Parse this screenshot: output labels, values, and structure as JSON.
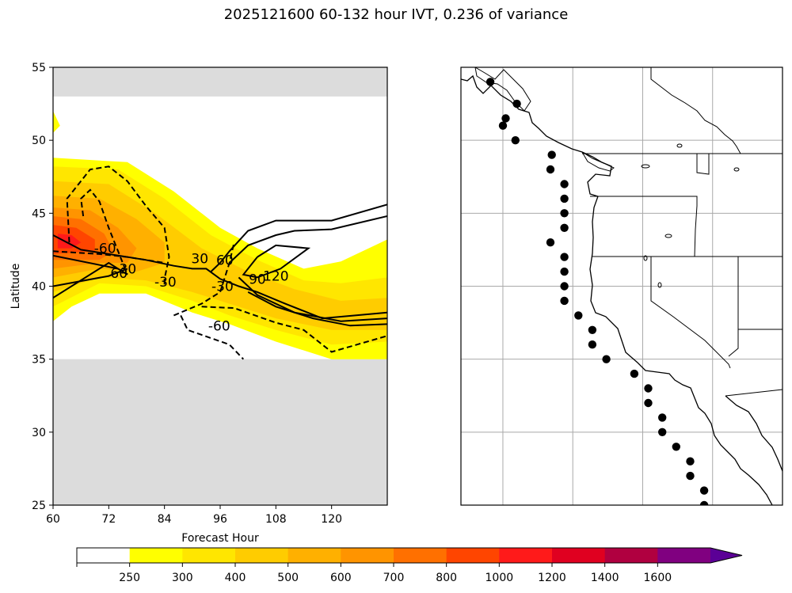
{
  "title": "2025121600 60-132 hour IVT, 0.236 of variance",
  "chart_data": [
    {
      "type": "heatmap",
      "panel": "left",
      "xlabel": "Forecast Hour",
      "ylabel": "Latitude",
      "xlim": [
        60,
        132
      ],
      "ylim": [
        25,
        55
      ],
      "xticks": [
        60,
        72,
        84,
        96,
        108,
        120
      ],
      "yticks": [
        25,
        30,
        35,
        40,
        45,
        50,
        55
      ],
      "data_lat_range": [
        35,
        53
      ],
      "masked_color": "#dcdcdc",
      "colorbar": {
        "levels": [
          "250",
          "300",
          "400",
          "500",
          "600",
          "700",
          "800",
          "1000",
          "1200",
          "1400",
          "1600"
        ],
        "colors": [
          "#ffffff",
          "#ffff00",
          "#ffe600",
          "#ffcc00",
          "#ffb000",
          "#ff9400",
          "#ff7000",
          "#ff4500",
          "#ff1a1a",
          "#e00020",
          "#b00040",
          "#800080",
          "#5b0096"
        ],
        "extend": "max"
      },
      "filled_regions": [
        {
          "level": 250,
          "color": "#ffff00",
          "points": [
            [
              60,
              52
            ],
            [
              61.5,
              51
            ],
            [
              60,
              50.5
            ]
          ]
        },
        {
          "level": 250,
          "color": "#ffff00",
          "points": [
            [
              60,
              48.8
            ],
            [
              76,
              48.5
            ],
            [
              86,
              46.5
            ],
            [
              96,
              44
            ],
            [
              104,
              42.6
            ],
            [
              114,
              41.2
            ],
            [
              122,
              41.7
            ],
            [
              132,
              43.2
            ],
            [
              132,
              35
            ],
            [
              120,
              35
            ],
            [
              108,
              36.2
            ],
            [
              98,
              37.4
            ],
            [
              90,
              38.2
            ],
            [
              80,
              39.5
            ],
            [
              70,
              39.5
            ],
            [
              64,
              38.6
            ],
            [
              60,
              37.6
            ]
          ]
        },
        {
          "level": 300,
          "color": "#ffe600",
          "points": [
            [
              60,
              48.2
            ],
            [
              74,
              48
            ],
            [
              84,
              46
            ],
            [
              94,
              43.5
            ],
            [
              104,
              41.8
            ],
            [
              114,
              40.4
            ],
            [
              122,
              40.2
            ],
            [
              132,
              40.6
            ],
            [
              132,
              36.2
            ],
            [
              120,
              36
            ],
            [
              108,
              37
            ],
            [
              98,
              38
            ],
            [
              90,
              39
            ],
            [
              80,
              40
            ],
            [
              70,
              40.2
            ],
            [
              60,
              38.6
            ]
          ]
        },
        {
          "level": 400,
          "color": "#ffcc00",
          "points": [
            [
              60,
              47.2
            ],
            [
              72,
              47
            ],
            [
              82,
              45
            ],
            [
              92,
              42.6
            ],
            [
              102,
              41
            ],
            [
              112,
              39.8
            ],
            [
              122,
              39
            ],
            [
              132,
              39.2
            ],
            [
              132,
              37
            ],
            [
              120,
              37
            ],
            [
              108,
              37.8
            ],
            [
              98,
              38.8
            ],
            [
              90,
              39.6
            ],
            [
              80,
              40.4
            ],
            [
              70,
              40.6
            ],
            [
              60,
              39.6
            ]
          ]
        },
        {
          "level": 500,
          "color": "#ffb000",
          "points": [
            [
              60,
              46.2
            ],
            [
              70,
              46
            ],
            [
              78,
              44.6
            ],
            [
              84,
              43
            ],
            [
              84,
              41.6
            ],
            [
              78,
              41
            ],
            [
              70,
              41.2
            ],
            [
              60,
              40.6
            ]
          ]
        },
        {
          "level": 600,
          "color": "#ff9400",
          "points": [
            [
              60,
              45.4
            ],
            [
              68,
              45.2
            ],
            [
              74,
              44
            ],
            [
              78,
              42.6
            ],
            [
              76,
              41.6
            ],
            [
              70,
              41.6
            ],
            [
              60,
              41.2
            ]
          ]
        },
        {
          "level": 700,
          "color": "#ff7000",
          "points": [
            [
              60,
              44.8
            ],
            [
              66,
              44.6
            ],
            [
              71,
              43.6
            ],
            [
              73,
              42.4
            ],
            [
              70,
              41.8
            ],
            [
              60,
              41.8
            ]
          ]
        },
        {
          "level": 800,
          "color": "#ff4500",
          "points": [
            [
              60,
              44.2
            ],
            [
              65,
              44
            ],
            [
              69,
              43.2
            ],
            [
              69,
              42.4
            ],
            [
              60,
              42.2
            ]
          ]
        },
        {
          "level": 1000,
          "color": "#ff1a1a",
          "points": [
            [
              61,
              43.6
            ],
            [
              64,
              43.5
            ],
            [
              66,
              43
            ],
            [
              64,
              42.6
            ],
            [
              61,
              42.6
            ]
          ]
        }
      ],
      "contours": [
        {
          "style": "dashed",
          "label": "-60",
          "label_at": [
            71.2,
            42.6
          ],
          "points": [
            [
              66.5,
              44.8
            ],
            [
              66,
              46
            ],
            [
              68,
              46.6
            ],
            [
              70,
              45.8
            ],
            [
              72,
              44
            ],
            [
              74.5,
              42
            ],
            [
              76,
              40.8
            ]
          ]
        },
        {
          "style": "dashed",
          "label": "-30",
          "label_at": [
            84.2,
            40.3
          ],
          "points": [
            [
              63.5,
              43
            ],
            [
              63,
              46
            ],
            [
              68,
              48
            ],
            [
              72,
              48.2
            ],
            [
              76,
              47.2
            ],
            [
              80,
              45.5
            ],
            [
              84,
              44
            ],
            [
              85,
              42
            ],
            [
              84,
              40.5
            ],
            [
              84,
              39.9
            ]
          ]
        },
        {
          "style": "dashed",
          "label": "",
          "label_at": null,
          "points": [
            [
              60,
              42.4
            ],
            [
              70,
              42.2
            ],
            [
              76,
              42
            ],
            [
              84,
              41.6
            ]
          ]
        },
        {
          "style": "dashed",
          "label": "-30",
          "label_at": [
            96.5,
            40
          ],
          "points": [
            [
              86,
              38
            ],
            [
              92,
              38.8
            ],
            [
              96,
              39.6
            ],
            [
              98,
              41.6
            ],
            [
              99,
              43
            ]
          ]
        },
        {
          "style": "dashed",
          "label": "-60",
          "label_at": [
            95.8,
            37.3
          ],
          "points": [
            [
              87.5,
              38
            ],
            [
              89,
              37
            ],
            [
              98,
              36
            ],
            [
              101,
              35
            ]
          ]
        },
        {
          "style": "dashed",
          "label": "",
          "label_at": null,
          "points": [
            [
              92,
              38.6
            ],
            [
              99,
              38.5
            ],
            [
              108,
              37.5
            ],
            [
              114,
              37
            ],
            [
              120,
              35.5
            ],
            [
              132,
              36.6
            ]
          ]
        },
        {
          "style": "solid",
          "label": "30",
          "label_at": [
            91.6,
            41.9
          ],
          "points": [
            [
              60,
              43.5
            ],
            [
              66,
              42.5
            ],
            [
              72,
              42.2
            ],
            [
              80,
              41.8
            ],
            [
              86,
              41.4
            ],
            [
              90,
              41.2
            ],
            [
              93,
              41.2
            ],
            [
              96,
              40.5
            ],
            [
              100,
              40
            ],
            [
              104,
              39.6
            ],
            [
              110,
              38.8
            ],
            [
              118,
              37.8
            ],
            [
              132,
              38.2
            ]
          ]
        },
        {
          "style": "solid",
          "label": "60",
          "label_at": [
            74.2,
            40.9
          ],
          "points": [
            [
              60,
              42.1
            ],
            [
              74,
              41.2
            ],
            [
              76,
              40.8
            ],
            [
              72,
              41.6
            ],
            [
              60,
              39.2
            ]
          ]
        },
        {
          "style": "solid",
          "label": "30",
          "label_at": [
            76.1,
            41.2
          ],
          "points": [
            [
              60,
              40
            ],
            [
              72,
              40.7
            ],
            [
              76,
              41.2
            ]
          ]
        },
        {
          "style": "solid",
          "label": "60",
          "label_at": [
            97,
            41.8
          ],
          "points": [
            [
              94,
              41
            ],
            [
              96,
              41.6
            ],
            [
              98,
              42.4
            ],
            [
              102,
              43.8
            ],
            [
              108,
              44.5
            ],
            [
              120,
              44.5
            ],
            [
              132,
              45.6
            ]
          ]
        },
        {
          "style": "solid",
          "label": "",
          "label_at": null,
          "points": [
            [
              98,
              41.6
            ],
            [
              102,
              42.8
            ],
            [
              108,
              43.5
            ],
            [
              112,
              43.8
            ],
            [
              120,
              43.9
            ],
            [
              132,
              44.8
            ]
          ]
        },
        {
          "style": "solid",
          "label": "120",
          "label_at": [
            108,
            40.7
          ],
          "points": [
            [
              104,
              42
            ],
            [
              108,
              42.8
            ],
            [
              115,
              42.6
            ],
            [
              109,
              41.2
            ],
            [
              104,
              40.6
            ],
            [
              101,
              40.8
            ],
            [
              104,
              42
            ]
          ]
        },
        {
          "style": "solid",
          "label": "90",
          "label_at": [
            104,
            40.5
          ],
          "points": [
            [
              100,
              40.6
            ],
            [
              104,
              39.4
            ],
            [
              112,
              38.2
            ],
            [
              122,
              37.6
            ],
            [
              132,
              37.8
            ]
          ]
        },
        {
          "style": "solid",
          "label": "",
          "label_at": null,
          "points": [
            [
              102,
              39.6
            ],
            [
              108,
              38.6
            ],
            [
              116,
              37.8
            ],
            [
              124,
              37.3
            ],
            [
              132,
              37.4
            ]
          ]
        }
      ]
    },
    {
      "type": "scatter",
      "panel": "right",
      "description": "",
      "graticule_lon": [
        -135,
        -130,
        -125,
        -120,
        -115
      ],
      "graticule_lat": [
        25,
        30,
        35,
        40,
        45,
        50,
        55
      ],
      "lon_range": [
        -138,
        -115
      ],
      "lat_range": [
        25,
        55
      ],
      "points": [
        [
          -135.9,
          54.0
        ],
        [
          -134.0,
          52.5
        ],
        [
          -134.8,
          51.5
        ],
        [
          -135.0,
          51.0
        ],
        [
          -134.1,
          50.0
        ],
        [
          -131.5,
          49.0
        ],
        [
          -131.6,
          48.0
        ],
        [
          -130.6,
          47.0
        ],
        [
          -130.6,
          46.0
        ],
        [
          -130.6,
          45.0
        ],
        [
          -130.6,
          44.0
        ],
        [
          -131.6,
          43.0
        ],
        [
          -130.6,
          42.0
        ],
        [
          -130.6,
          41.0
        ],
        [
          -130.6,
          40.0
        ],
        [
          -130.6,
          39.0
        ],
        [
          -129.6,
          38.0
        ],
        [
          -128.6,
          37.0
        ],
        [
          -128.6,
          36.0
        ],
        [
          -127.6,
          35.0
        ],
        [
          -125.6,
          34.0
        ],
        [
          -124.6,
          33.0
        ],
        [
          -124.6,
          32.0
        ],
        [
          -123.6,
          31.0
        ],
        [
          -123.6,
          30.0
        ],
        [
          -122.6,
          29.0
        ],
        [
          -121.6,
          28.0
        ],
        [
          -121.6,
          27.0
        ],
        [
          -120.6,
          26.0
        ],
        [
          -120.6,
          25.0
        ]
      ]
    }
  ]
}
